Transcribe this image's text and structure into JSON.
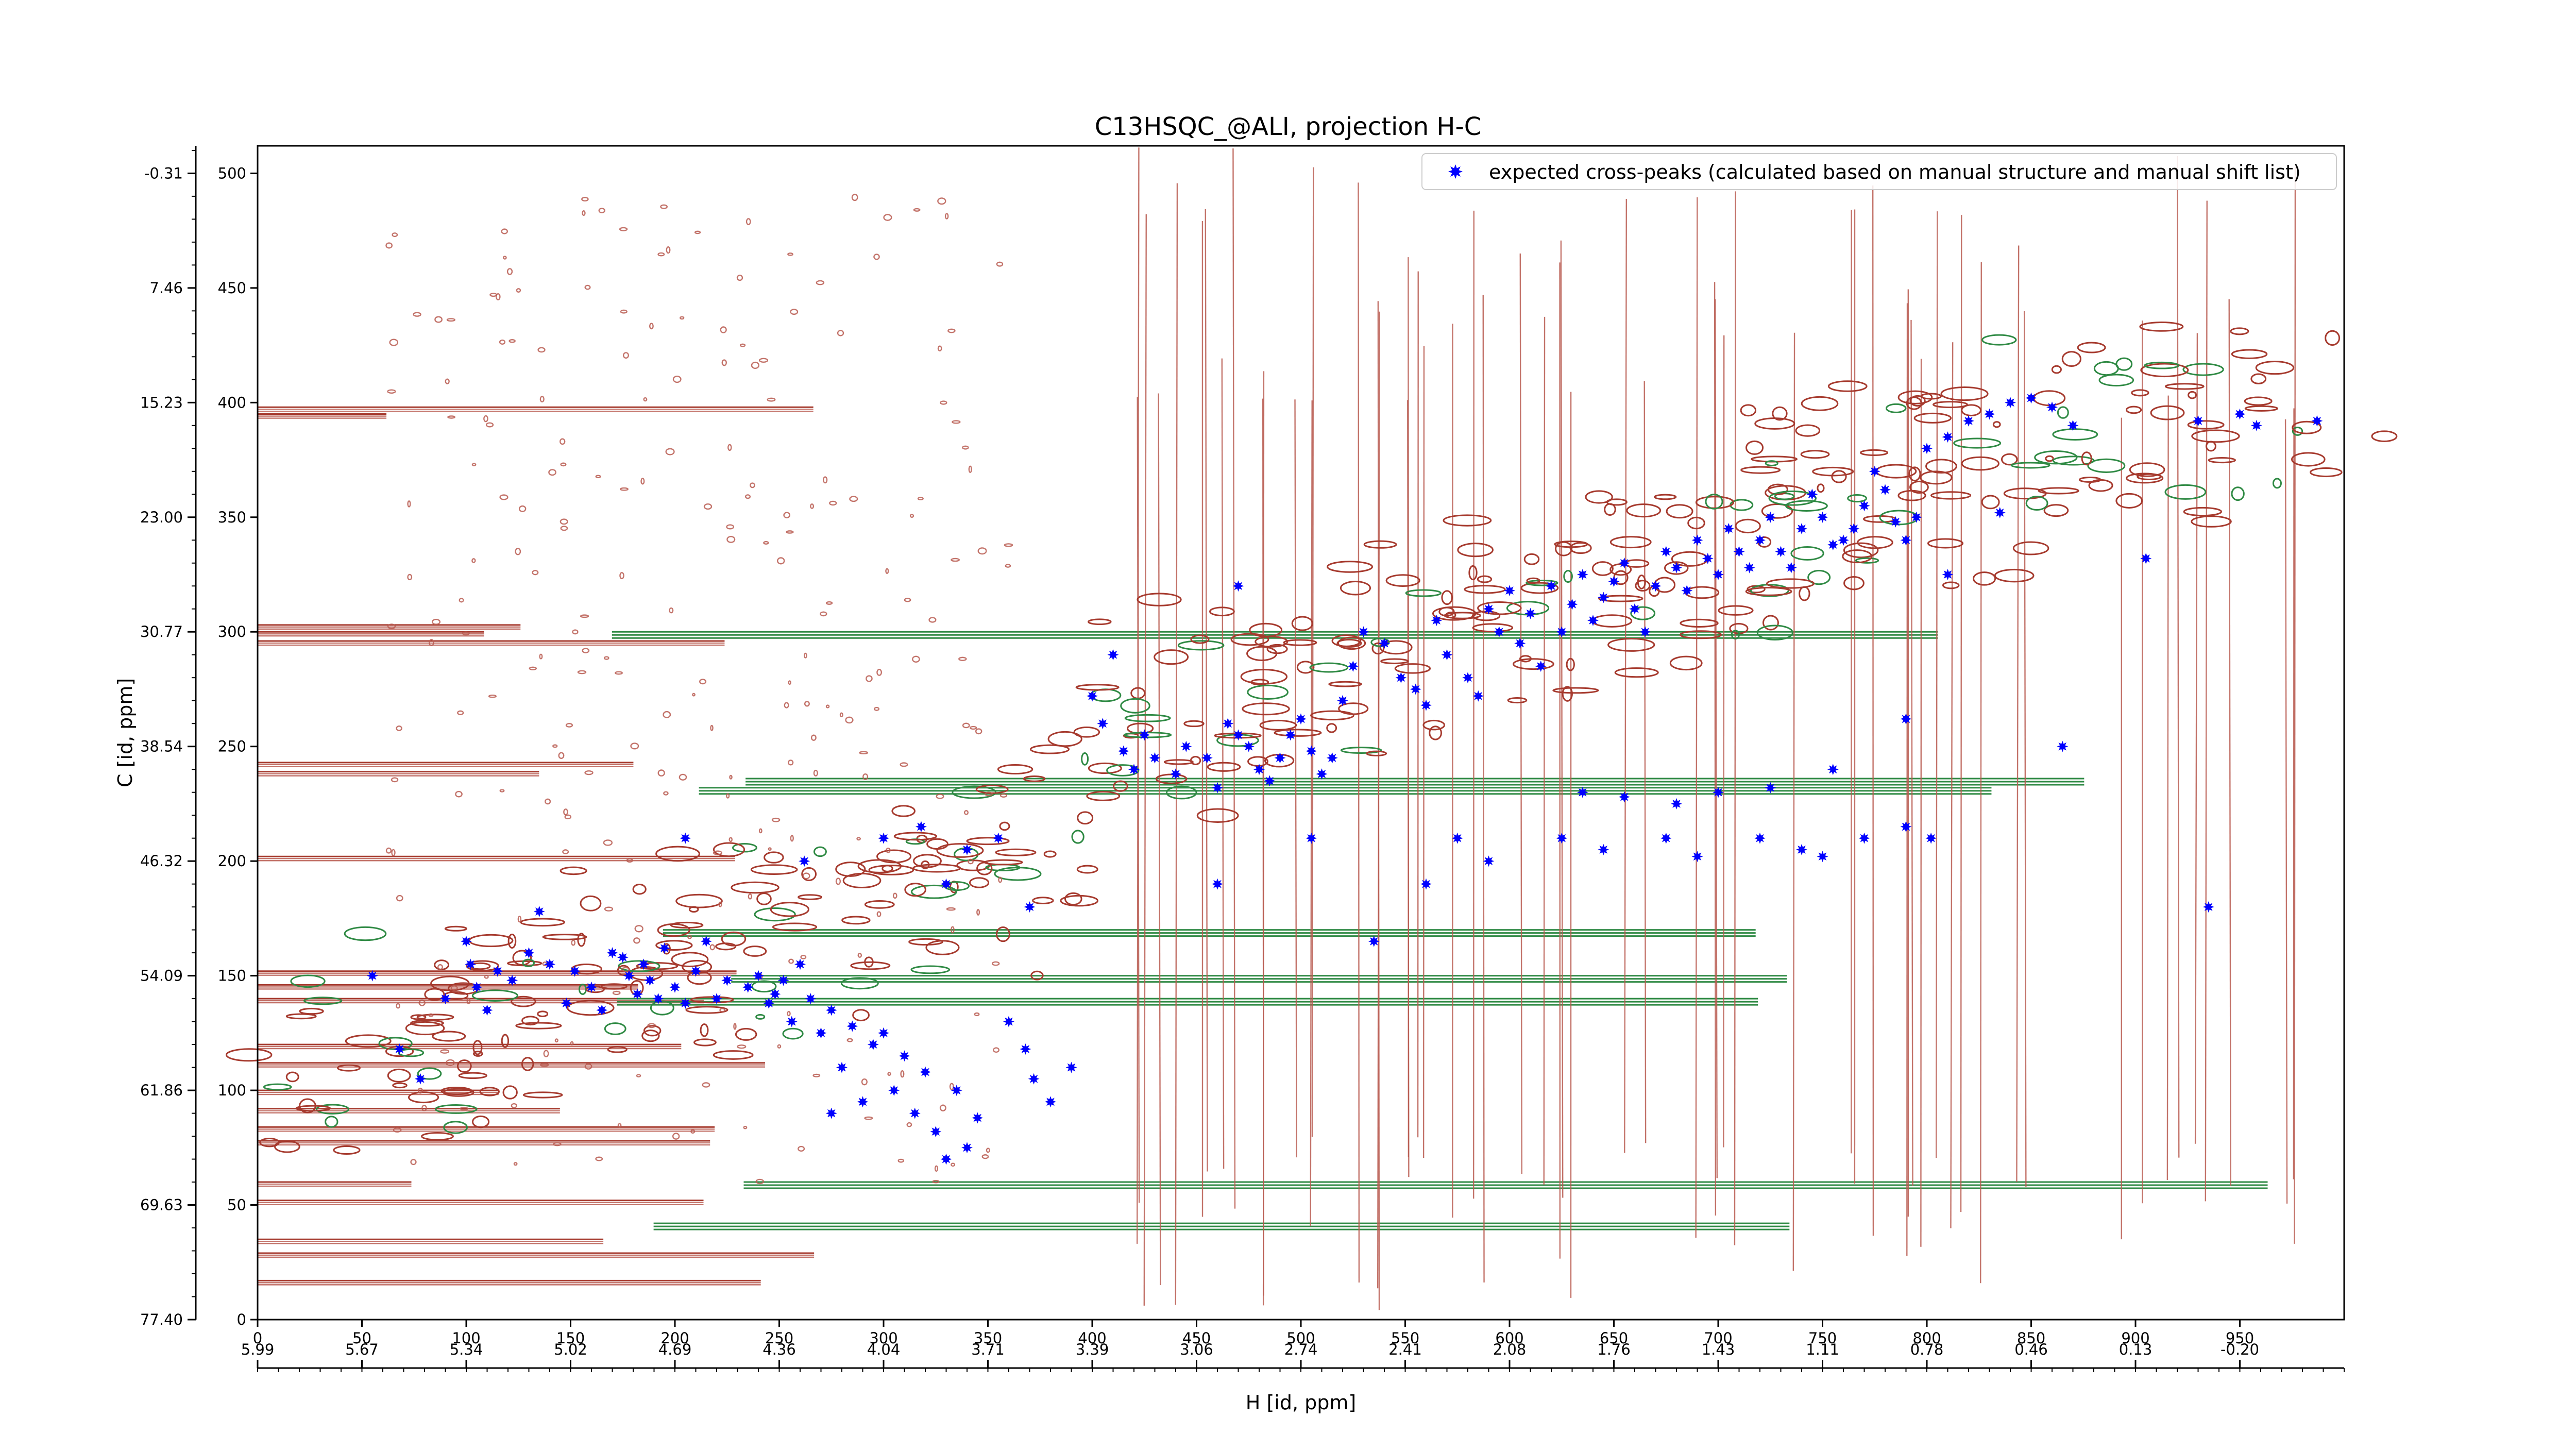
{
  "chart_data": {
    "type": "scatter",
    "title": "C13HSQC_@ALI, projection H-C",
    "xlabel": "H [id, ppm]",
    "ylabel": "C [id, ppm]",
    "xlim": [
      0,
      1000
    ],
    "ylim": [
      0,
      512
    ],
    "x_ticks_points": [
      "0",
      "50",
      "100",
      "150",
      "200",
      "250",
      "300",
      "350",
      "400",
      "450",
      "500",
      "550",
      "600",
      "650",
      "700",
      "750",
      "800",
      "850",
      "900",
      "950"
    ],
    "x_ticks_ppm": [
      "5.99",
      "5.67",
      "5.34",
      "5.02",
      "4.69",
      "4.36",
      "4.04",
      "3.71",
      "3.39",
      "3.06",
      "2.74",
      "2.41",
      "2.08",
      "1.76",
      "1.43",
      "1.11",
      "0.78",
      "0.46",
      "0.13",
      "-0.20"
    ],
    "y_ticks_points": [
      "0",
      "50",
      "100",
      "150",
      "200",
      "250",
      "300",
      "350",
      "400",
      "450",
      "500"
    ],
    "y_ticks_ppm": [
      "77.40",
      "69.63",
      "61.86",
      "54.09",
      "46.32",
      "38.54",
      "30.77",
      "23.00",
      "15.23",
      "7.46",
      "-0.31"
    ],
    "legend": {
      "placement": "top-right",
      "entries": [
        "expected cross-peaks (calculated based on manual structure and manual shift list)"
      ]
    },
    "series": [
      {
        "name": "expected cross-peaks (calculated based on manual structure and manual shift list)",
        "color": "#0000ff",
        "marker": "star",
        "x": [
          55,
          68,
          78,
          90,
          100,
          102,
          105,
          110,
          115,
          122,
          130,
          135,
          140,
          148,
          152,
          160,
          165,
          170,
          175,
          178,
          182,
          185,
          188,
          192,
          195,
          200,
          205,
          210,
          215,
          220,
          225,
          235,
          240,
          245,
          248,
          252,
          256,
          260,
          265,
          270,
          275,
          280,
          285,
          290,
          295,
          300,
          305,
          310,
          315,
          320,
          325,
          330,
          335,
          340,
          345,
          360,
          368,
          372,
          380,
          390,
          405,
          415,
          420,
          425,
          430,
          440,
          445,
          455,
          460,
          465,
          470,
          475,
          480,
          485,
          490,
          495,
          500,
          505,
          510,
          515,
          520,
          525,
          530,
          540,
          548,
          555,
          560,
          565,
          570,
          580,
          585,
          590,
          595,
          600,
          605,
          610,
          615,
          620,
          625,
          630,
          635,
          640,
          645,
          650,
          655,
          660,
          665,
          670,
          675,
          680,
          685,
          690,
          695,
          700,
          705,
          710,
          715,
          720,
          725,
          730,
          735,
          740,
          745,
          750,
          755,
          760,
          765,
          770,
          775,
          780,
          785,
          790,
          795,
          800,
          810,
          820,
          830,
          840,
          850,
          860,
          870,
          930,
          950,
          958,
          987,
          205,
          262,
          275,
          300,
          318,
          330,
          340,
          355,
          370,
          400,
          410,
          460,
          470,
          505,
          535,
          560,
          575,
          590,
          625,
          645,
          675,
          690,
          720,
          740,
          750,
          770,
          790,
          802,
          635,
          655,
          680,
          700,
          725,
          755,
          790,
          810,
          835,
          865,
          905,
          935
        ],
        "y": [
          150,
          118,
          105,
          140,
          165,
          155,
          145,
          135,
          152,
          148,
          160,
          178,
          155,
          138,
          152,
          145,
          135,
          160,
          158,
          150,
          142,
          155,
          148,
          140,
          162,
          145,
          138,
          152,
          165,
          140,
          148,
          145,
          150,
          138,
          142,
          148,
          130,
          155,
          140,
          125,
          135,
          110,
          128,
          95,
          120,
          125,
          100,
          115,
          90,
          108,
          82,
          70,
          100,
          75,
          88,
          130,
          118,
          105,
          95,
          110,
          260,
          248,
          240,
          255,
          245,
          238,
          250,
          245,
          232,
          260,
          255,
          250,
          240,
          235,
          245,
          255,
          262,
          248,
          238,
          245,
          270,
          285,
          300,
          295,
          280,
          275,
          268,
          305,
          290,
          280,
          272,
          310,
          300,
          318,
          295,
          308,
          285,
          320,
          300,
          312,
          325,
          305,
          315,
          322,
          330,
          310,
          300,
          320,
          335,
          328,
          318,
          340,
          332,
          325,
          345,
          335,
          328,
          340,
          350,
          335,
          328,
          345,
          360,
          350,
          338,
          340,
          345,
          355,
          370,
          362,
          348,
          340,
          350,
          380,
          385,
          392,
          395,
          400,
          402,
          398,
          390,
          392,
          395,
          390,
          392,
          210,
          200,
          90,
          210,
          215,
          190,
          205,
          210,
          180,
          272,
          290,
          190,
          320,
          210,
          165,
          190,
          210,
          200,
          210,
          205,
          210,
          202,
          210,
          205,
          202,
          210,
          215,
          210,
          230,
          228,
          225,
          230,
          232,
          240,
          262,
          325,
          352,
          250,
          332,
          180
        ],
        "note_markers": "star"
      }
    ]
  }
}
